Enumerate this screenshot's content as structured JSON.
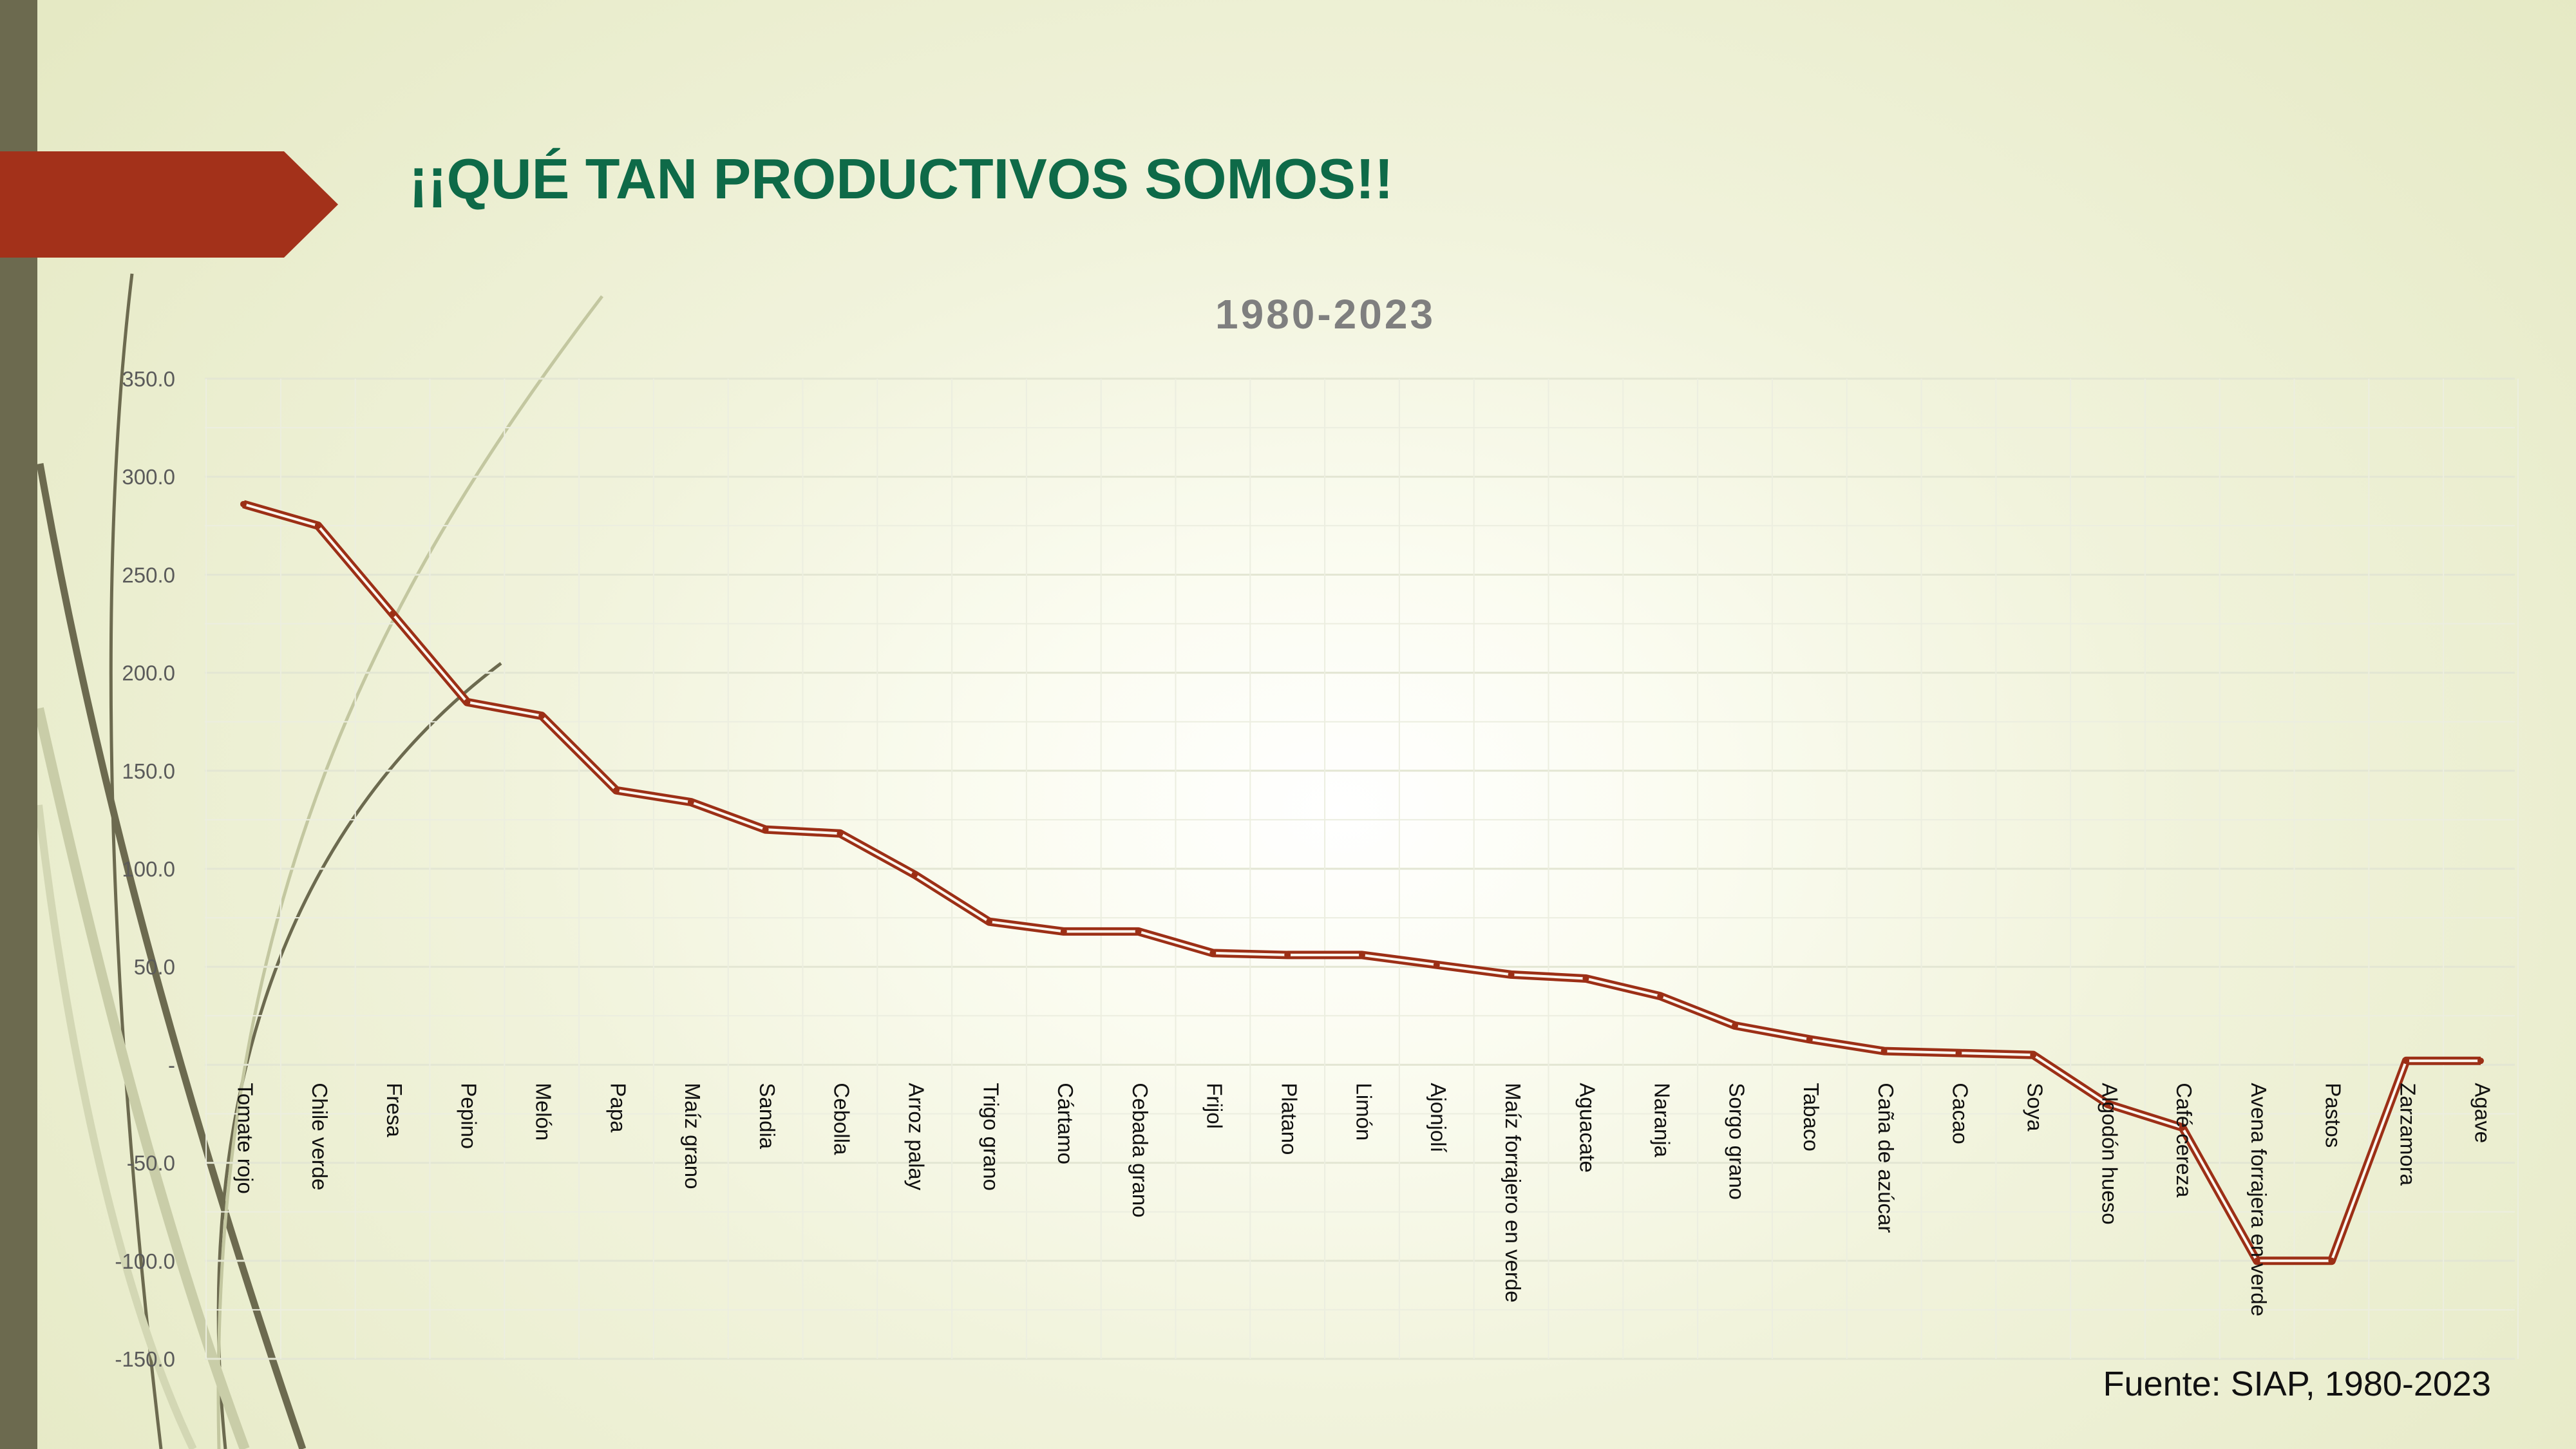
{
  "slide": {
    "title": "¡¡QUÉ TAN PRODUCTIVOS SOMOS!!",
    "source": "Fuente: SIAP, 1980-2023"
  },
  "colors": {
    "title": "#0e6a48",
    "accent_arrow": "#a3311a",
    "left_bar": "#6c6a4f",
    "series_line": "#9c2f16",
    "axis_text": "#5a5a5a"
  },
  "chart_data": {
    "type": "line",
    "title": "1980-2023",
    "xlabel": "",
    "ylabel": "",
    "ylim": [
      -150,
      350
    ],
    "y_ticks": [
      "350.0",
      "300.0",
      "250.0",
      "200.0",
      "150.0",
      "100.0",
      "50.0",
      "-",
      "-50.0",
      "-100.0",
      "-150.0"
    ],
    "grid": true,
    "legend": "none",
    "categories": [
      "Tomate rojo",
      "Chile verde",
      "Fresa",
      "Pepino",
      "Melón",
      "Papa",
      "Maíz grano",
      "Sandia",
      "Cebolla",
      "Arroz palay",
      "Trigo grano",
      "Cártamo",
      "Cebada grano",
      "Frijol",
      "Platano",
      "Limón",
      "Ajonjolí",
      "Maíz forrajero en verde",
      "Aguacate",
      "Naranja",
      "Sorgo grano",
      "Tabaco",
      "Caña de azúcar",
      "Cacao",
      "Soya",
      "Algodón hueso",
      "Café cereza",
      "Avena forrajera en verde",
      "Pastos",
      "Zarzamora",
      "Agave"
    ],
    "series": [
      {
        "values": [
          286,
          275,
          230,
          185,
          178,
          140,
          134,
          120,
          118,
          97,
          73,
          68,
          68,
          57,
          56,
          56,
          51,
          46,
          44,
          35,
          20,
          13,
          7,
          6,
          5,
          -20,
          -32,
          -100,
          -100,
          2,
          2
        ]
      }
    ]
  }
}
